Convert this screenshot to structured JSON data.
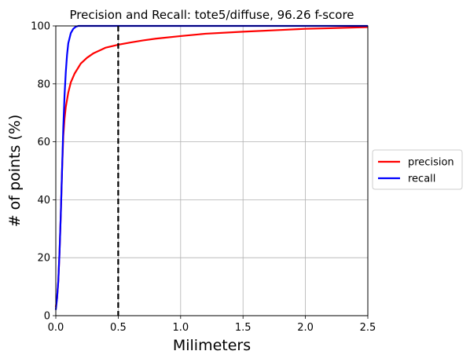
{
  "chart_data": {
    "type": "line",
    "title": "Precision and Recall: tote5/diffuse, 96.26 f-score",
    "xlabel": "Milimeters",
    "ylabel": "# of points (%)",
    "xlim": [
      0,
      2.5
    ],
    "ylim": [
      0,
      100
    ],
    "xticks": [
      "0.0",
      "0.5",
      "1.0",
      "1.5",
      "2.0",
      "2.5"
    ],
    "yticks": [
      "0",
      "20",
      "40",
      "60",
      "80",
      "100"
    ],
    "grid": true,
    "legend_position": "right",
    "threshold": 0.5,
    "series": [
      {
        "name": "precision",
        "color": "#ff0000",
        "x": [
          0,
          0.01,
          0.02,
          0.03,
          0.04,
          0.05,
          0.06,
          0.07,
          0.08,
          0.1,
          0.12,
          0.15,
          0.2,
          0.25,
          0.3,
          0.4,
          0.5,
          0.6,
          0.7,
          0.8,
          1.0,
          1.2,
          1.5,
          1.8,
          2.0,
          2.2,
          2.5
        ],
        "y": [
          3,
          6,
          12,
          22,
          35,
          50,
          62,
          68,
          72,
          77,
          80.5,
          83.5,
          87,
          89,
          90.5,
          92.5,
          93.5,
          94.3,
          95,
          95.6,
          96.5,
          97.3,
          98,
          98.6,
          99,
          99.2,
          99.6
        ]
      },
      {
        "name": "recall",
        "color": "#0000ff",
        "x": [
          0,
          0.01,
          0.02,
          0.03,
          0.04,
          0.05,
          0.06,
          0.07,
          0.08,
          0.09,
          0.1,
          0.12,
          0.14,
          0.16,
          0.18,
          0.2,
          2.5
        ],
        "y": [
          2,
          6,
          12,
          22,
          35,
          50,
          65,
          76,
          84,
          90,
          94,
          97.5,
          99,
          99.7,
          100,
          100,
          100
        ]
      }
    ]
  }
}
